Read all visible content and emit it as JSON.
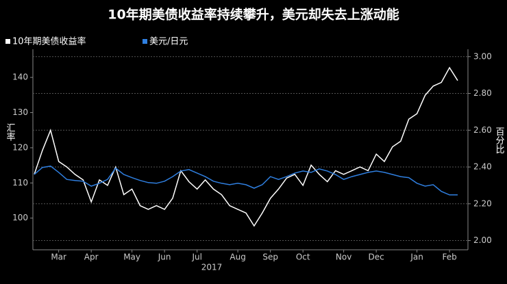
{
  "chart_data": {
    "type": "line",
    "title": "10年期美债收益率持续攀升，美元却失去上涨动能",
    "ylabel": "汇率",
    "y2label": "百分比",
    "xlabel": "2017",
    "categories": [
      null,
      null,
      null,
      "Mar",
      null,
      null,
      null,
      "Apr",
      null,
      null,
      null,
      null,
      "May",
      null,
      null,
      null,
      "Jun",
      null,
      null,
      null,
      "Jul",
      null,
      null,
      null,
      null,
      "Aug",
      null,
      null,
      null,
      "Sep",
      null,
      null,
      null,
      "Oct",
      null,
      null,
      null,
      null,
      "Nov",
      null,
      null,
      null,
      "Dec",
      null,
      null,
      null,
      null,
      "Jan",
      null,
      null,
      null,
      "Feb",
      null
    ],
    "series": [
      {
        "name": "10年期美债收益率",
        "color": "#ffffff",
        "axis": "y2",
        "values": [
          2.36,
          2.49,
          2.6,
          2.43,
          2.4,
          2.36,
          2.33,
          2.21,
          2.33,
          2.3,
          2.4,
          2.25,
          2.28,
          2.19,
          2.17,
          2.19,
          2.17,
          2.23,
          2.38,
          2.32,
          2.28,
          2.33,
          2.28,
          2.25,
          2.19,
          2.17,
          2.15,
          2.08,
          2.15,
          2.23,
          2.28,
          2.34,
          2.36,
          2.3,
          2.41,
          2.36,
          2.32,
          2.38,
          2.36,
          2.38,
          2.4,
          2.38,
          2.47,
          2.43,
          2.51,
          2.54,
          2.66,
          2.69,
          2.79,
          2.84,
          2.86,
          2.94,
          2.87
        ]
      },
      {
        "name": "美元/日元",
        "color": "#2f7fe0",
        "values": [
          112.4,
          114.4,
          114.8,
          113,
          111,
          110.7,
          110.5,
          109.1,
          109.9,
          111,
          114.2,
          112.4,
          111.5,
          110.7,
          110.1,
          109.9,
          110.5,
          111.8,
          113.4,
          113.8,
          112.8,
          111.8,
          110.5,
          109.9,
          109.5,
          109.9,
          109.5,
          108.5,
          109.5,
          111.8,
          111,
          111.8,
          112.8,
          113.4,
          113,
          114,
          113.4,
          112.4,
          111,
          111.8,
          112.4,
          113,
          113.4,
          113,
          112.4,
          111.8,
          111.5,
          109.9,
          109.1,
          109.5,
          107.6,
          106.6,
          106.6
        ]
      }
    ],
    "ylim": [
      91,
      148
    ],
    "yticks": [
      100,
      110,
      120,
      130,
      140
    ],
    "y2lim": [
      1.95,
      3.04
    ],
    "y2ticks": [
      {
        "value": 2,
        "label": "2.00"
      },
      {
        "value": 2.2,
        "label": "2.20"
      },
      {
        "value": 2.4,
        "label": "2.40"
      },
      {
        "value": 2.6,
        "label": "2.60"
      },
      {
        "value": 2.8,
        "label": "2.80"
      },
      {
        "value": 3,
        "label": "3.00"
      }
    ],
    "grid": true
  }
}
